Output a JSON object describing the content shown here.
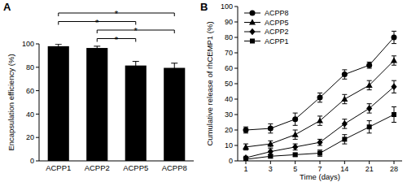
{
  "chart_data": [
    {
      "type": "bar",
      "title": "A",
      "y_label": "Encapsulation efficiency (%)",
      "categories": [
        "ACPP1",
        "ACPP2",
        "ACPP5",
        "ACPP8"
      ],
      "values": [
        98,
        96.5,
        81.5,
        79.5
      ],
      "errors": [
        1.8,
        1.5,
        3.5,
        4
      ],
      "color": "#000000",
      "ylim": [
        0,
        100
      ],
      "yticks": [
        0,
        20,
        40,
        60,
        80,
        100
      ],
      "annotations": [
        {
          "text": "*",
          "from": 0,
          "to": 3
        },
        {
          "text": "*",
          "from": 0,
          "to": 2
        },
        {
          "text": "*",
          "from": 1,
          "to": 3
        },
        {
          "text": "*",
          "from": 1,
          "to": 2
        }
      ]
    },
    {
      "type": "line",
      "title": "B",
      "x_label": "Time (days)",
      "y_label": "Cumulative release of rhCEMP1 (%)",
      "categories": [
        "1",
        "3",
        "5",
        "7",
        "14",
        "21",
        "28"
      ],
      "ylim": [
        0,
        100
      ],
      "yticks": [
        0,
        10,
        20,
        30,
        40,
        50,
        60,
        70,
        80,
        90,
        100
      ],
      "legend": "top-left",
      "series": [
        {
          "name": "ACPP8",
          "color": "#000000",
          "marker": "circle",
          "values": [
            20,
            21,
            27,
            41,
            56,
            62,
            80
          ],
          "errors": [
            2,
            3,
            4,
            3,
            3,
            2,
            4
          ]
        },
        {
          "name": "ACPP5",
          "color": "#000000",
          "marker": "triangle",
          "values": [
            9,
            11,
            17,
            26,
            40,
            49,
            65
          ],
          "errors": [
            2,
            2,
            3,
            3,
            3,
            3,
            3
          ]
        },
        {
          "name": "ACPP2",
          "color": "#000000",
          "marker": "diamond",
          "values": [
            2,
            6,
            9,
            12,
            24,
            34,
            48
          ],
          "errors": [
            1,
            2,
            2,
            2,
            3,
            3,
            4
          ]
        },
        {
          "name": "ACPP1",
          "color": "#000000",
          "marker": "square",
          "values": [
            1,
            3,
            4,
            5,
            14,
            22,
            30
          ],
          "errors": [
            1,
            1,
            1,
            2,
            3,
            4,
            5
          ]
        }
      ]
    }
  ]
}
